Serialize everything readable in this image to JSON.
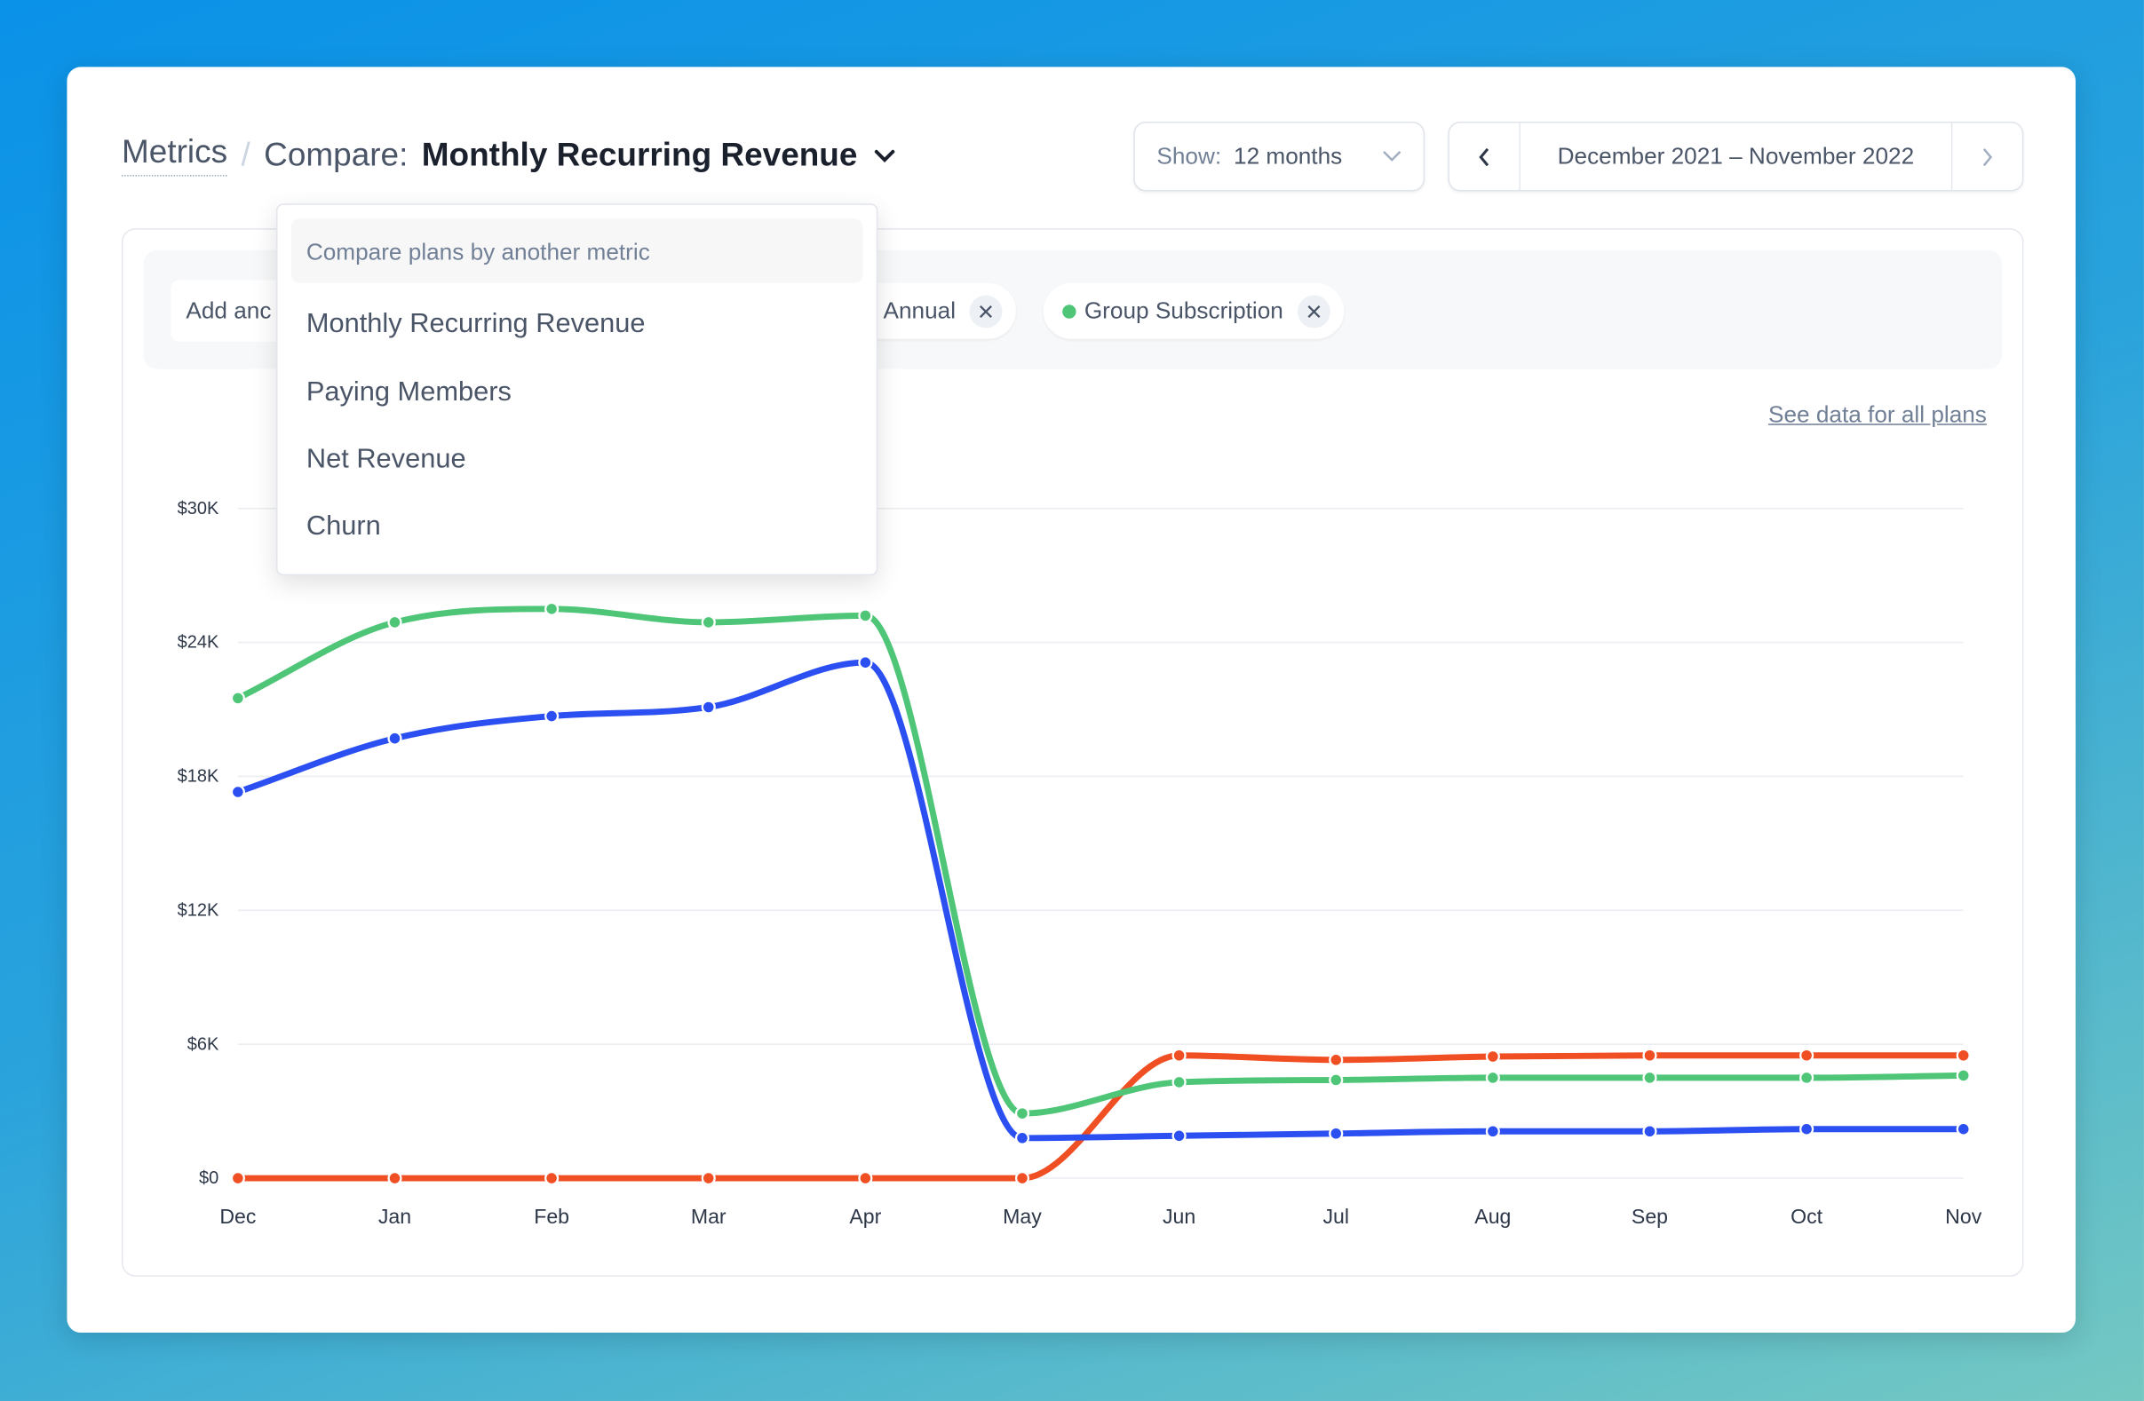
{
  "breadcrumb": {
    "root": "Metrics",
    "separator": "/",
    "compare_label": "Compare:",
    "metric": "Monthly Recurring Revenue"
  },
  "show_select": {
    "label": "Show:",
    "value": "12 months"
  },
  "date_range": {
    "text": "December 2021 – November 2022"
  },
  "filters": {
    "add_label": "Add anc",
    "chips": [
      {
        "label": "Annual",
        "color": "#2b4ff0"
      },
      {
        "label": "Group Subscription",
        "color": "#4fc677"
      }
    ]
  },
  "link": "See data for all plans",
  "dropdown": {
    "header": "Compare plans by another metric",
    "items": [
      "Monthly Recurring Revenue",
      "Paying Members",
      "Net Revenue",
      "Churn"
    ]
  },
  "chart_data": {
    "type": "line",
    "categories": [
      "Dec",
      "Jan",
      "Feb",
      "Mar",
      "Apr",
      "May",
      "Jun",
      "Jul",
      "Aug",
      "Sep",
      "Oct",
      "Nov"
    ],
    "y_ticks": [
      "$0",
      "$6K",
      "$12K",
      "$18K",
      "$24K",
      "$30K"
    ],
    "ylim": [
      0,
      30000
    ],
    "grid": true,
    "series": [
      {
        "color": "#f04e23",
        "values": [
          0,
          0,
          0,
          0,
          0,
          0,
          5500,
          5300,
          5450,
          5500,
          5500,
          5500
        ]
      },
      {
        "name": "Group Subscription",
        "color": "#4fc677",
        "values": [
          21500,
          24900,
          25500,
          24900,
          25200,
          2900,
          4300,
          4400,
          4500,
          4500,
          4500,
          4600
        ]
      },
      {
        "name": "Annual",
        "color": "#2b4ff0",
        "values": [
          17300,
          19700,
          20700,
          21100,
          23100,
          1800,
          1900,
          2000,
          2100,
          2100,
          2200,
          2200
        ]
      }
    ]
  }
}
